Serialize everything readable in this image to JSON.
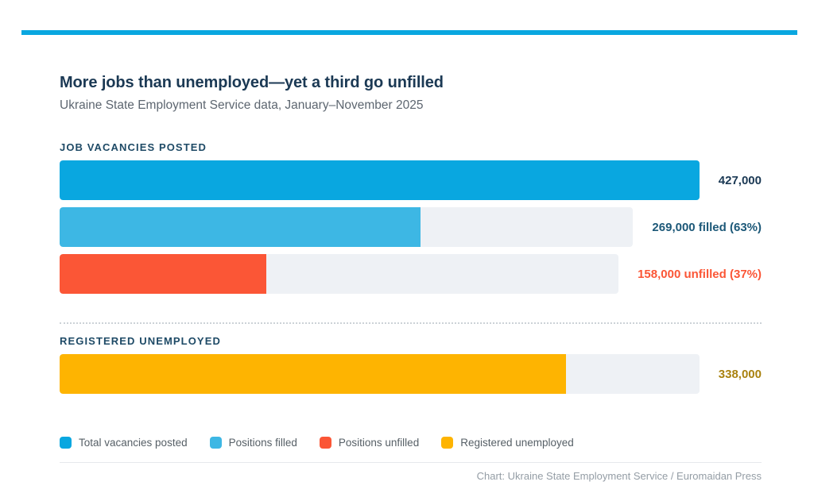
{
  "colors": {
    "accent_blue": "#09a7e0",
    "light_blue": "#3db7e4",
    "red": "#fb5636",
    "yellow": "#feb401",
    "track": "#eef1f5",
    "title_navy": "#1b3954",
    "section_navy": "#1e4a66",
    "subtitle_gray": "#5d6670",
    "legend_gray": "#565f66",
    "footer_gray": "#949da5"
  },
  "chart_data": {
    "type": "bar",
    "orientation": "horizontal",
    "title": "More jobs than unemployed—yet a third go unfilled",
    "subtitle": "Ukraine State Employment Service data, January–November 2025",
    "max_value": 427000,
    "grid": false,
    "legend_position": "bottom",
    "sections": [
      {
        "label": "JOB VACANCIES POSTED",
        "bars": [
          {
            "name": "Total vacancies posted",
            "value": 427000,
            "value_label": "427,000",
            "fill_pct": 100,
            "color": "#09a7e0",
            "label_color": "#1b3954"
          },
          {
            "name": "Positions filled",
            "value": 269000,
            "value_label": "269,000 filled (63%)",
            "fill_pct": 63,
            "color": "#3db7e4",
            "label_color": "#1c5878"
          },
          {
            "name": "Positions unfilled",
            "value": 158000,
            "value_label": "158,000 unfilled (37%)",
            "fill_pct": 37,
            "color": "#fb5636",
            "label_color": "#fb5636"
          }
        ]
      },
      {
        "label": "REGISTERED UNEMPLOYED",
        "bars": [
          {
            "name": "Registered unemployed",
            "value": 338000,
            "value_label": "338,000",
            "fill_pct": 79.2,
            "color": "#feb401",
            "label_color": "#a9820f"
          }
        ]
      }
    ],
    "legend": [
      {
        "label": "Total vacancies posted",
        "color": "#09a7e0"
      },
      {
        "label": "Positions filled",
        "color": "#3db7e4"
      },
      {
        "label": "Positions unfilled",
        "color": "#fb5636"
      },
      {
        "label": "Registered unemployed",
        "color": "#feb401"
      }
    ]
  },
  "footer": {
    "credit": "Chart: Ukraine State Employment Service / Euromaidan Press"
  }
}
